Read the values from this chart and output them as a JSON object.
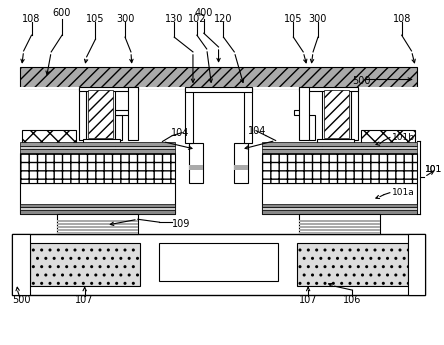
{
  "bg": "#ffffff",
  "lw": 0.8,
  "fs": 7.0,
  "colors": {
    "white": "#ffffff",
    "black": "#000000",
    "dark_gray": "#999999",
    "med_gray": "#bbbbbb",
    "light_gray": "#dddddd"
  }
}
